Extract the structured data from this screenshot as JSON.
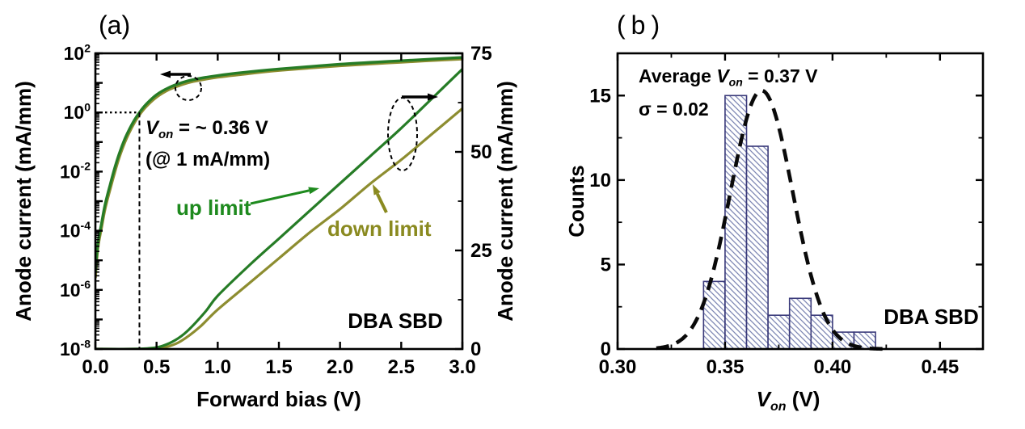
{
  "figure": {
    "background": "#ffffff"
  },
  "colors": {
    "green_curve": "#267c26",
    "green_label": "#1e8a1e",
    "olive_curve": "#8d8d30",
    "olive_label": "#8a8a20",
    "navy_edge": "#3a3a7a",
    "hatch": "#7d86b3",
    "black": "#000000"
  },
  "panel_a": {
    "label": "(a)",
    "xlabel": "Forward bias (V)",
    "ylabel_left": "Anode current (mA/mm)",
    "ylabel_right": "Anode current (mA/mm)",
    "log_base": "10",
    "x_tick_labels": [
      "0.0",
      "0.5",
      "1.0",
      "1.5",
      "2.0",
      "2.5",
      "3.0"
    ],
    "left_tick_exponents": [
      "2",
      "0",
      "-2",
      "-4",
      "-6",
      "-8"
    ],
    "right_tick_labels": [
      "0",
      "25",
      "50",
      "75"
    ],
    "von_annotation": {
      "var": "V",
      "sub": "on",
      "rest": " = ~ 0.36 V"
    },
    "at_annotation": "(@ 1 mA/mm)",
    "up_limit_label": "up limit",
    "down_limit_label": "down limit",
    "device_label": "DBA SBD"
  },
  "panel_b": {
    "label": "(b)",
    "xlabel": {
      "var": "V",
      "sub": "on",
      "rest": " (V)"
    },
    "ylabel": "Counts",
    "x_tick_labels": [
      "0.30",
      "0.35",
      "0.40",
      "0.45"
    ],
    "y_tick_labels": [
      "0",
      "5",
      "10",
      "15"
    ],
    "average_annotation": {
      "pre": "Average ",
      "var": "V",
      "sub": "on",
      "rest": " = 0.37 V"
    },
    "sigma_annotation": "σ = 0.02",
    "device_label": "DBA SBD"
  },
  "chart_data": [
    {
      "type": "line",
      "panel": "a",
      "xlabel": "Forward bias (V)",
      "xlim": [
        0,
        3
      ],
      "x_major_tick_step": 0.5,
      "y_left_axis": {
        "scale": "log",
        "label": "Anode current (mA/mm)",
        "lim_log10": [
          -8,
          2
        ],
        "labeled_exponents": [
          2,
          0,
          -2,
          -4,
          -6,
          -8
        ]
      },
      "y_right_axis": {
        "scale": "linear",
        "label": "Anode current (mA/mm)",
        "lim": [
          0,
          75
        ],
        "major_ticks": [
          0,
          25,
          50,
          75
        ],
        "minor_step": 12.5
      },
      "von_marker": {
        "x": 0.36,
        "y_log10": 0,
        "note": "Von = ~ 0.36 V @ 1 mA/mm"
      },
      "series": [
        {
          "name": "up limit (log, left axis)",
          "color_key": "green_curve",
          "x": [
            0,
            0.02,
            0.05,
            0.08,
            0.12,
            0.16,
            0.2,
            0.24,
            0.28,
            0.32,
            0.36,
            0.42,
            0.5,
            0.6,
            0.7,
            0.8,
            1.0,
            1.2,
            1.5,
            2.0,
            2.5,
            3.0
          ],
          "y_log10": [
            -5.4,
            -4.45,
            -3.75,
            -3.1,
            -2.45,
            -1.85,
            -1.33,
            -0.9,
            -0.55,
            -0.25,
            0,
            0.3,
            0.6,
            0.84,
            1.0,
            1.11,
            1.25,
            1.35,
            1.47,
            1.63,
            1.75,
            1.86
          ]
        },
        {
          "name": "down limit (log, left axis)",
          "color_key": "olive_curve",
          "x": [
            0,
            0.02,
            0.05,
            0.08,
            0.12,
            0.16,
            0.2,
            0.24,
            0.28,
            0.32,
            0.36,
            0.42,
            0.5,
            0.6,
            0.7,
            0.8,
            1.0,
            1.2,
            1.5,
            2.0,
            2.5,
            3.0
          ],
          "y_log10": [
            -5.6,
            -4.6,
            -3.9,
            -3.25,
            -2.6,
            -2.0,
            -1.46,
            -1.02,
            -0.65,
            -0.34,
            -0.08,
            0.22,
            0.52,
            0.77,
            0.93,
            1.05,
            1.19,
            1.29,
            1.42,
            1.58,
            1.7,
            1.81
          ]
        },
        {
          "name": "up limit (linear, right axis)",
          "color_key": "green_curve",
          "x": [
            0,
            0.3,
            0.45,
            0.55,
            0.65,
            0.75,
            0.9,
            1.0,
            1.25,
            1.5,
            1.75,
            2.0,
            2.25,
            2.5,
            2.75,
            3.0
          ],
          "y": [
            0,
            0,
            0.2,
            0.8,
            2.2,
            4.5,
            9.5,
            13.5,
            21,
            28,
            35,
            42,
            49,
            56,
            63.5,
            71
          ]
        },
        {
          "name": "down limit (linear, right axis)",
          "color_key": "olive_curve",
          "x": [
            0,
            0.35,
            0.5,
            0.6,
            0.7,
            0.85,
            1.0,
            1.25,
            1.5,
            1.75,
            2.0,
            2.25,
            2.5,
            2.75,
            3.0
          ],
          "y": [
            0,
            0,
            0.15,
            0.7,
            2.0,
            5.5,
            10,
            16.5,
            23,
            29.5,
            35.5,
            42,
            48,
            54.5,
            61
          ]
        }
      ]
    },
    {
      "type": "bar",
      "panel": "b",
      "xlabel": "Von (V)",
      "ylabel": "Counts",
      "xlim": [
        0.3,
        0.47
      ],
      "ylim": [
        0,
        17.5
      ],
      "bin_start": 0.34,
      "bin_width": 0.01,
      "counts": [
        4,
        15,
        12,
        2,
        3,
        2,
        1,
        1
      ],
      "gaussian_fit": {
        "amplitude": 15.3,
        "mean": 0.367,
        "sigma": 0.0145,
        "x_range": [
          0.318,
          0.426
        ],
        "average_von": 0.37,
        "sigma_value": 0.02
      },
      "x_major_ticks": [
        0.3,
        0.35,
        0.4,
        0.45
      ],
      "x_minor_step": 0.025,
      "y_major_ticks": [
        0,
        5,
        10,
        15
      ],
      "y_minor_step": 2.5
    }
  ]
}
